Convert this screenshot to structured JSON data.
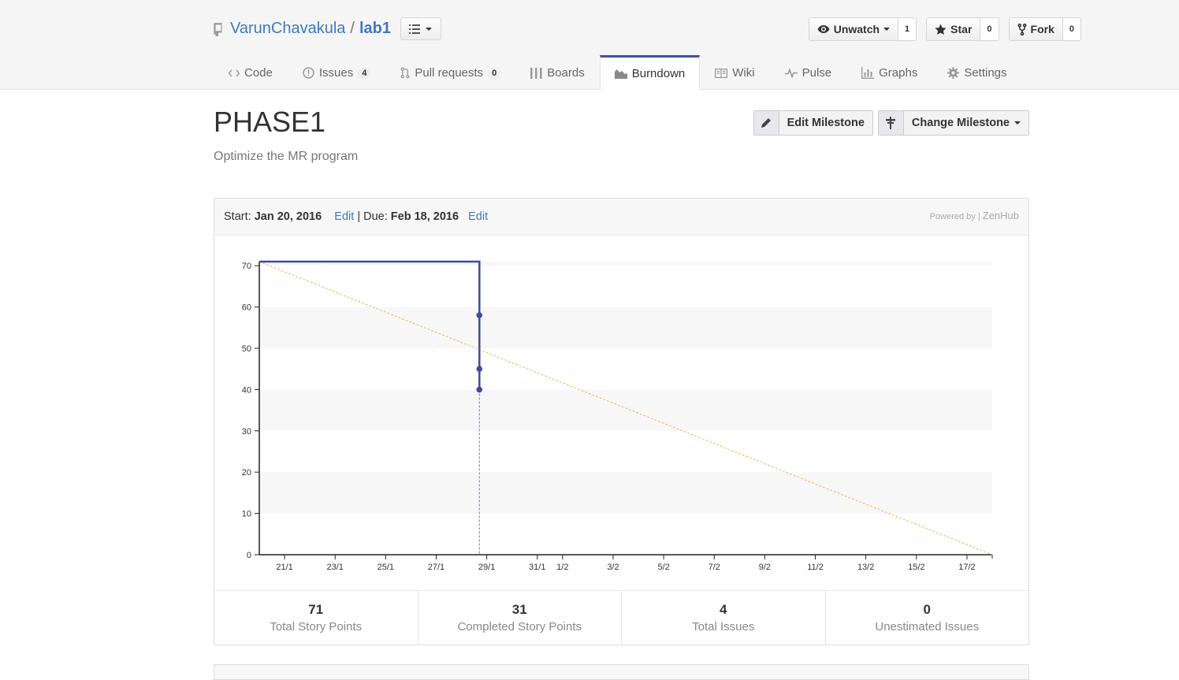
{
  "repo": {
    "owner": "VarunChavakula",
    "separator": "/",
    "name": "lab1"
  },
  "actions": {
    "watch": {
      "label": "Unwatch",
      "count": "1"
    },
    "star": {
      "label": "Star",
      "count": "0"
    },
    "fork": {
      "label": "Fork",
      "count": "0"
    }
  },
  "nav": {
    "code": "Code",
    "issues": "Issues",
    "issues_count": "4",
    "pulls": "Pull requests",
    "pulls_count": "0",
    "boards": "Boards",
    "burndown": "Burndown",
    "wiki": "Wiki",
    "pulse": "Pulse",
    "graphs": "Graphs",
    "settings": "Settings"
  },
  "milestone": {
    "title": "PHASE1",
    "description": "Optimize the MR program",
    "edit_label": "Edit Milestone",
    "change_label": "Change Milestone"
  },
  "dates": {
    "start_label": "Start:",
    "start": "Jan 20, 2016",
    "edit1": "Edit",
    "sep": "|",
    "due_label": "Due:",
    "due": "Feb 18, 2016",
    "edit2": "Edit"
  },
  "powered": {
    "by": "Powered by |",
    "brand": "ZenHub"
  },
  "chart_data": {
    "type": "line",
    "y_ticks": [
      0,
      10,
      20,
      30,
      40,
      50,
      60,
      70
    ],
    "ylim": [
      0,
      71
    ],
    "x_start": "2016-01-20",
    "x_end": "2016-02-18",
    "x_ticks": [
      {
        "date": "2016-01-21",
        "label": "21/1"
      },
      {
        "date": "2016-01-23",
        "label": "23/1"
      },
      {
        "date": "2016-01-25",
        "label": "25/1"
      },
      {
        "date": "2016-01-27",
        "label": "27/1"
      },
      {
        "date": "2016-01-29",
        "label": "29/1"
      },
      {
        "date": "2016-01-31",
        "label": "31/1"
      },
      {
        "date": "2016-02-01",
        "label": "1/2"
      },
      {
        "date": "2016-02-03",
        "label": "3/2"
      },
      {
        "date": "2016-02-05",
        "label": "5/2"
      },
      {
        "date": "2016-02-07",
        "label": "7/2"
      },
      {
        "date": "2016-02-09",
        "label": "9/2"
      },
      {
        "date": "2016-02-11",
        "label": "11/2"
      },
      {
        "date": "2016-02-13",
        "label": "13/2"
      },
      {
        "date": "2016-02-15",
        "label": "15/2"
      },
      {
        "date": "2016-02-17",
        "label": "17/2"
      }
    ],
    "ideal": [
      {
        "x": "2016-01-20",
        "y": 71
      },
      {
        "x": "2016-02-18",
        "y": 0
      }
    ],
    "actual": [
      {
        "x": "2016-01-20",
        "y": 71
      },
      {
        "x": "2016-01-28T17:00",
        "y": 71
      },
      {
        "x": "2016-01-28T17:00",
        "y": 58
      },
      {
        "x": "2016-01-28T17:00",
        "y": 45
      },
      {
        "x": "2016-01-28T17:00",
        "y": 40
      }
    ],
    "actual_points": [
      {
        "x": "2016-01-28T17:00",
        "y": 58
      },
      {
        "x": "2016-01-28T17:00",
        "y": 45
      },
      {
        "x": "2016-01-28T17:00",
        "y": 40
      }
    ],
    "today": "2016-01-28T17:00",
    "colors": {
      "actual": "#3f4b9e",
      "ideal": "#f5b35a",
      "band": "#f7f7f7",
      "today": "#6b74d6"
    }
  },
  "stats": [
    {
      "value": "71",
      "label": "Total Story Points"
    },
    {
      "value": "31",
      "label": "Completed Story Points"
    },
    {
      "value": "4",
      "label": "Total Issues"
    },
    {
      "value": "0",
      "label": "Unestimated Issues"
    }
  ]
}
